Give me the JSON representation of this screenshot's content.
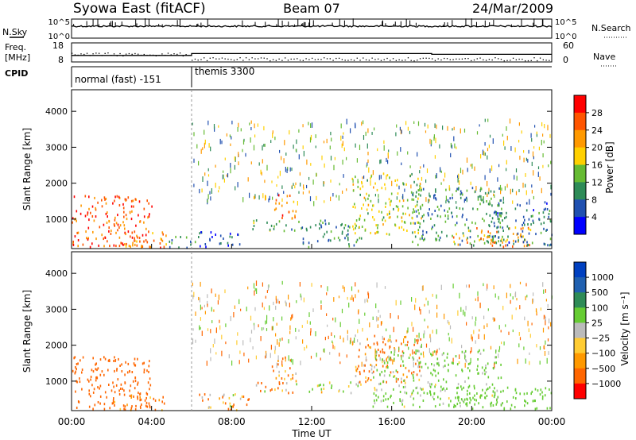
{
  "header": {
    "station": "Syowa East (fitACF)",
    "beam": "Beam 07",
    "date": "24/Mar/2009"
  },
  "top_panels": {
    "nsky": {
      "label": "N.Sky",
      "tick_top": "10^5",
      "tick_bottom": "10^0",
      "right_label": "N.Search",
      "right_tick_top": "10^5",
      "right_tick_bottom": "10^0"
    },
    "freq": {
      "label_line1": "Freq.",
      "label_line2": "[MHz]",
      "tick_top": "18",
      "tick_bottom": "8",
      "right_label": "Nave",
      "right_tick_top": "60",
      "right_tick_bottom": "0"
    },
    "cpid": {
      "label": "CPID",
      "segments": [
        {
          "name": "normal (fast) -151",
          "start_hour": 0,
          "end_hour": 6
        },
        {
          "name": "themis 3300",
          "start_hour": 6,
          "end_hour": 24
        }
      ]
    }
  },
  "colors": {
    "power_scale": [
      "#0000ff",
      "#2050b0",
      "#2e8b57",
      "#66bb33",
      "#ffd000",
      "#ff9900",
      "#ff5500",
      "#ff0000"
    ],
    "velocity_scale": [
      "#ff0000",
      "#ff6600",
      "#ff9900",
      "#ffcc33",
      "#bbbbbb",
      "#66cc33",
      "#2e8b57",
      "#2060b0",
      "#0040c0"
    ]
  },
  "chart_data": [
    {
      "type": "heatmap",
      "name": "power",
      "xlabel": "",
      "ylabel": "Slant Range [km]",
      "x_range_hours": [
        0,
        24
      ],
      "ylim": [
        180,
        4600
      ],
      "yticks": [
        "1000",
        "2000",
        "3000",
        "4000"
      ],
      "colorbar": {
        "label": "Power [dB]",
        "ticks": [
          "4",
          "8",
          "12",
          "16",
          "20",
          "24",
          "28"
        ],
        "range": [
          0,
          32
        ]
      },
      "echo_regions": [
        {
          "t0": 0.0,
          "t1": 4.0,
          "r0": 250,
          "r1": 1700,
          "level": 26
        },
        {
          "t0": 2.0,
          "t1": 4.8,
          "r0": 220,
          "r1": 700,
          "level": 24
        },
        {
          "t0": 4.8,
          "t1": 6.3,
          "r0": 230,
          "r1": 550,
          "level": 10
        },
        {
          "t0": 6.3,
          "t1": 8.5,
          "r0": 250,
          "r1": 700,
          "level": 6
        },
        {
          "t0": 9.0,
          "t1": 11.5,
          "r0": 700,
          "r1": 1000,
          "level": 12
        },
        {
          "t0": 10.0,
          "t1": 11.2,
          "r0": 1000,
          "r1": 1700,
          "level": 24
        },
        {
          "t0": 11.5,
          "t1": 14.5,
          "r0": 250,
          "r1": 1000,
          "level": 10
        },
        {
          "t0": 14.0,
          "t1": 17.5,
          "r0": 600,
          "r1": 2300,
          "level": 16
        },
        {
          "t0": 17.0,
          "t1": 21.5,
          "r0": 300,
          "r1": 1900,
          "level": 10
        },
        {
          "t0": 19.0,
          "t1": 23.0,
          "r0": 250,
          "r1": 800,
          "level": 22
        },
        {
          "t0": 21.0,
          "t1": 24.0,
          "r0": 300,
          "r1": 1500,
          "level": 8
        }
      ]
    },
    {
      "type": "heatmap",
      "name": "velocity",
      "xlabel": "Time UT",
      "ylabel": "Slant Range [km]",
      "x_range_hours": [
        0,
        24
      ],
      "xticks": [
        "00:00",
        "04:00",
        "08:00",
        "12:00",
        "16:00",
        "20:00",
        "00:00"
      ],
      "ylim": [
        180,
        4600
      ],
      "yticks": [
        "1000",
        "2000",
        "3000",
        "4000"
      ],
      "colorbar": {
        "label": "Velocity [m s⁻¹]",
        "ticks": [
          "1000",
          "500",
          "100",
          "25",
          "−25",
          "−100",
          "−500",
          "−1000"
        ],
        "range": [
          -1200,
          1200
        ]
      },
      "echo_regions": [
        {
          "t0": 0.0,
          "t1": 4.0,
          "r0": 250,
          "r1": 1700,
          "level": -300
        },
        {
          "t0": 2.0,
          "t1": 4.8,
          "r0": 220,
          "r1": 700,
          "level": -200
        },
        {
          "t0": 6.3,
          "t1": 9.0,
          "r0": 220,
          "r1": 700,
          "level": -60
        },
        {
          "t0": 9.0,
          "t1": 11.5,
          "r0": 700,
          "r1": 1000,
          "level": -80
        },
        {
          "t0": 10.0,
          "t1": 11.2,
          "r0": 1000,
          "r1": 1700,
          "level": -150
        },
        {
          "t0": 11.5,
          "t1": 14.5,
          "r0": 700,
          "r1": 1000,
          "level": 150
        },
        {
          "t0": 14.0,
          "t1": 17.5,
          "r0": 1000,
          "r1": 2300,
          "level": -120
        },
        {
          "t0": 15.0,
          "t1": 21.5,
          "r0": 300,
          "r1": 1900,
          "level": 200
        },
        {
          "t0": 19.0,
          "t1": 24.0,
          "r0": 250,
          "r1": 900,
          "level": 300
        }
      ]
    }
  ]
}
